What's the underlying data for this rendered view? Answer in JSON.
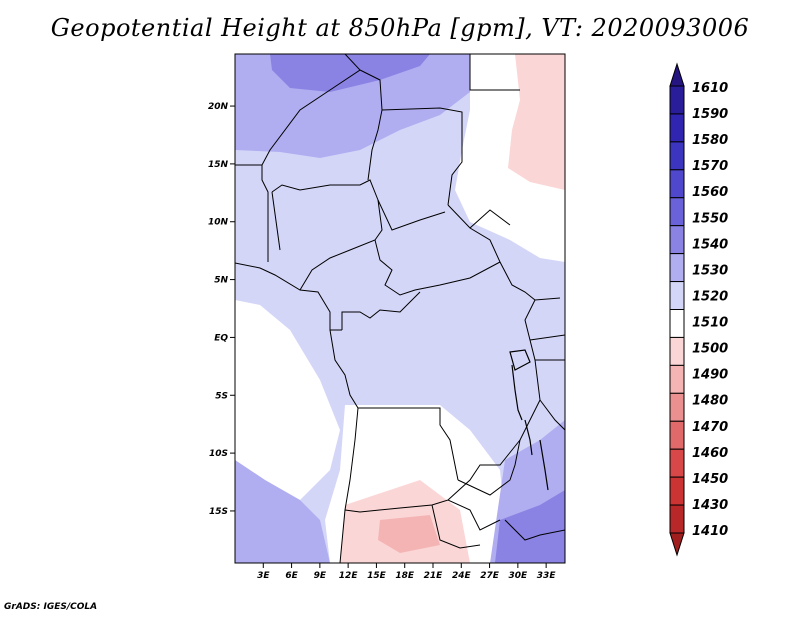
{
  "title": "Geopotential Height at 850hPa [gpm], VT: 2020093006",
  "credit": "GrADS: IGES/COLA",
  "map": {
    "region": "Central Africa",
    "lat_range": [
      -19.5,
      24.5
    ],
    "lon_range": [
      0,
      35
    ],
    "lat_ticks": [
      {
        "value": 20,
        "label": "20N"
      },
      {
        "value": 15,
        "label": "15N"
      },
      {
        "value": 10,
        "label": "10N"
      },
      {
        "value": 5,
        "label": "5N"
      },
      {
        "value": 0,
        "label": "EQ"
      },
      {
        "value": -5,
        "label": "5S"
      },
      {
        "value": -10,
        "label": "10S"
      },
      {
        "value": -15,
        "label": "15S"
      }
    ],
    "lon_ticks": [
      {
        "value": 3,
        "label": "3E"
      },
      {
        "value": 6,
        "label": "6E"
      },
      {
        "value": 9,
        "label": "9E"
      },
      {
        "value": 12,
        "label": "12E"
      },
      {
        "value": 15,
        "label": "15E"
      },
      {
        "value": 18,
        "label": "18E"
      },
      {
        "value": 21,
        "label": "21E"
      },
      {
        "value": 24,
        "label": "24E"
      },
      {
        "value": 27,
        "label": "27E"
      },
      {
        "value": 30,
        "label": "30E"
      },
      {
        "value": 33,
        "label": "33E"
      }
    ]
  },
  "colorbar": {
    "levels": [
      {
        "label": "1610",
        "color": "#251580"
      },
      {
        "label": "1590",
        "color": "#2a1d9a"
      },
      {
        "label": "1580",
        "color": "#3025b0"
      },
      {
        "label": "1570",
        "color": "#3c35c0"
      },
      {
        "label": "1560",
        "color": "#5048cc"
      },
      {
        "label": "1550",
        "color": "#6a62d8"
      },
      {
        "label": "1540",
        "color": "#8a83e4"
      },
      {
        "label": "1530",
        "color": "#b0aef0"
      },
      {
        "label": "1520",
        "color": "#d4d6f8"
      },
      {
        "label": "1510",
        "color": "#ffffff"
      },
      {
        "label": "1500",
        "color": "#fbd6d6"
      },
      {
        "label": "1490",
        "color": "#f4b4b4"
      },
      {
        "label": "1480",
        "color": "#ea9090"
      },
      {
        "label": "1470",
        "color": "#e06a6a"
      },
      {
        "label": "1460",
        "color": "#d84848"
      },
      {
        "label": "1450",
        "color": "#cc3434"
      },
      {
        "label": "1430",
        "color": "#b82828"
      },
      {
        "label": "1410",
        "color": "#a01e1e"
      }
    ]
  }
}
